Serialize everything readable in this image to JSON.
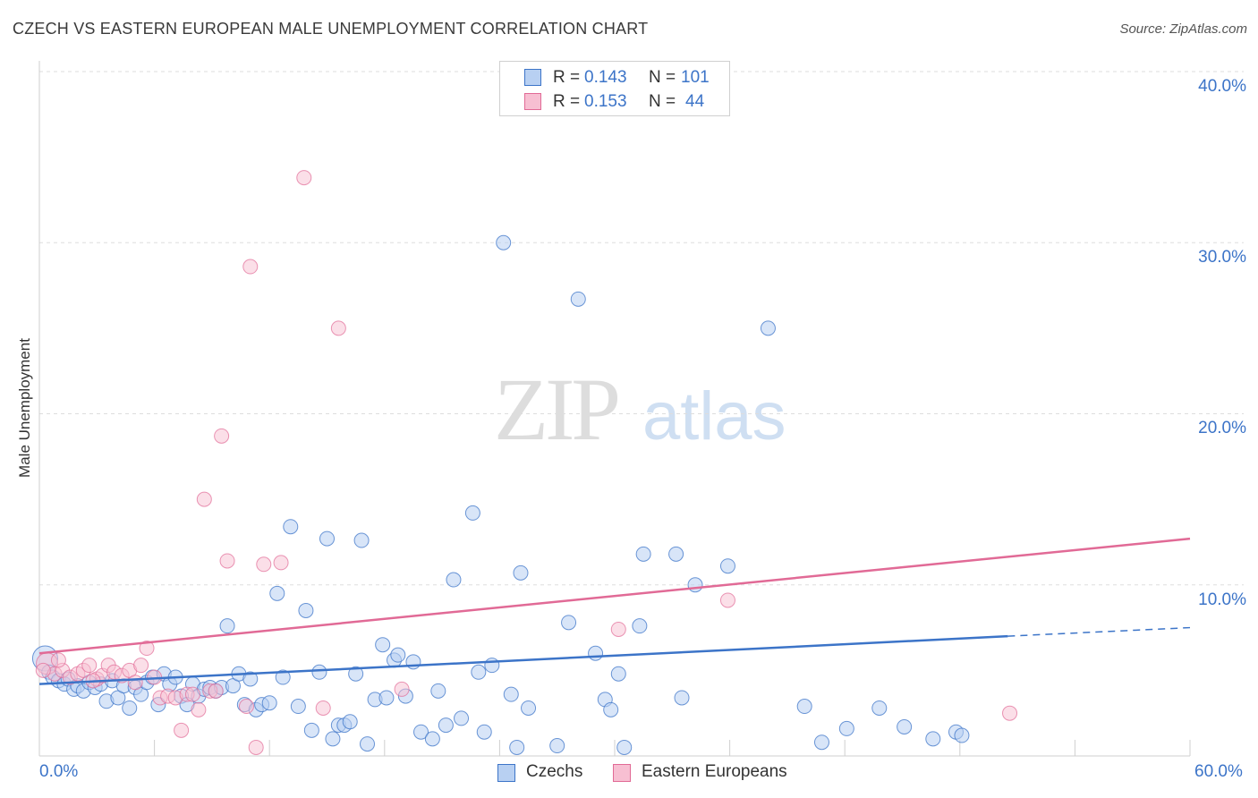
{
  "header": {
    "title": "CZECH VS EASTERN EUROPEAN MALE UNEMPLOYMENT CORRELATION CHART",
    "source": "Source: ZipAtlas.com"
  },
  "watermark": {
    "part1": "ZIP",
    "part2": "atlas"
  },
  "colors": {
    "blue": "#3c74c8",
    "blue_fill": "#b8d0f2",
    "pink": "#e16a96",
    "pink_fill": "#f7bfd2",
    "grid": "#dddddd"
  },
  "legend_top": {
    "rows": [
      {
        "r_label": "R =",
        "r_value": "0.143",
        "n_label": "N =",
        "n_value": "101"
      },
      {
        "r_label": "R =",
        "r_value": "0.153",
        "n_label": "N =",
        "n_value": "44"
      }
    ]
  },
  "legend_bottom": {
    "series1": "Czechs",
    "series2": "Eastern Europeans"
  },
  "axes": {
    "ylabel": "Male Unemployment",
    "y_ticks": [
      "10.0%",
      "20.0%",
      "30.0%",
      "40.0%"
    ],
    "x_min_label": "0.0%",
    "x_max_label": "60.0%"
  },
  "chart_data": {
    "type": "scatter",
    "title": "CZECH VS EASTERN EUROPEAN MALE UNEMPLOYMENT CORRELATION CHART",
    "xlabel": "",
    "ylabel": "Male Unemployment",
    "xlim": [
      0,
      60
    ],
    "ylim": [
      0,
      40
    ],
    "series": [
      {
        "name": "Czechs",
        "r": 0.143,
        "n": 101,
        "trend": {
          "x0": 0,
          "y0": 4.2,
          "x1": 50.5,
          "y1": 7.0,
          "dash_to_x": 60,
          "dash_to_y": 7.5
        },
        "points": [
          [
            0.3,
            5.7
          ],
          [
            0.5,
            4.9
          ],
          [
            0.7,
            4.6
          ],
          [
            1.0,
            4.4
          ],
          [
            1.3,
            4.2
          ],
          [
            1.5,
            4.5
          ],
          [
            1.8,
            3.9
          ],
          [
            2.0,
            4.1
          ],
          [
            2.3,
            3.8
          ],
          [
            2.6,
            4.3
          ],
          [
            2.9,
            4.0
          ],
          [
            3.2,
            4.2
          ],
          [
            3.5,
            3.2
          ],
          [
            3.8,
            4.4
          ],
          [
            4.1,
            3.4
          ],
          [
            4.4,
            4.1
          ],
          [
            4.7,
            2.8
          ],
          [
            5.0,
            4.0
          ],
          [
            5.3,
            3.6
          ],
          [
            5.6,
            4.3
          ],
          [
            5.9,
            4.6
          ],
          [
            6.2,
            3.0
          ],
          [
            6.5,
            4.8
          ],
          [
            6.8,
            4.2
          ],
          [
            7.1,
            4.6
          ],
          [
            7.4,
            3.5
          ],
          [
            7.7,
            3.0
          ],
          [
            8.0,
            4.2
          ],
          [
            8.3,
            3.5
          ],
          [
            8.6,
            3.9
          ],
          [
            8.9,
            4.0
          ],
          [
            9.2,
            3.8
          ],
          [
            9.5,
            4.0
          ],
          [
            9.8,
            7.6
          ],
          [
            10.1,
            4.1
          ],
          [
            10.4,
            4.8
          ],
          [
            10.7,
            3.0
          ],
          [
            11.0,
            4.5
          ],
          [
            11.3,
            2.7
          ],
          [
            11.6,
            3.0
          ],
          [
            12.0,
            3.1
          ],
          [
            12.4,
            9.5
          ],
          [
            12.7,
            4.6
          ],
          [
            13.1,
            13.4
          ],
          [
            13.5,
            2.9
          ],
          [
            13.9,
            8.5
          ],
          [
            14.2,
            1.5
          ],
          [
            14.6,
            4.9
          ],
          [
            15.0,
            12.7
          ],
          [
            15.3,
            1.0
          ],
          [
            15.6,
            1.8
          ],
          [
            15.9,
            1.8
          ],
          [
            16.2,
            2.0
          ],
          [
            16.5,
            4.8
          ],
          [
            16.8,
            12.6
          ],
          [
            17.1,
            0.7
          ],
          [
            17.5,
            3.3
          ],
          [
            17.9,
            6.5
          ],
          [
            18.1,
            3.4
          ],
          [
            18.5,
            5.6
          ],
          [
            18.7,
            5.9
          ],
          [
            19.1,
            3.5
          ],
          [
            19.5,
            5.5
          ],
          [
            19.9,
            1.4
          ],
          [
            20.5,
            1.0
          ],
          [
            20.8,
            3.8
          ],
          [
            21.2,
            1.8
          ],
          [
            21.6,
            10.3
          ],
          [
            22.0,
            2.2
          ],
          [
            22.6,
            14.2
          ],
          [
            22.9,
            4.9
          ],
          [
            23.2,
            1.4
          ],
          [
            23.6,
            5.3
          ],
          [
            24.2,
            30.0
          ],
          [
            24.6,
            3.6
          ],
          [
            24.9,
            0.5
          ],
          [
            25.1,
            10.7
          ],
          [
            25.5,
            2.8
          ],
          [
            27.0,
            0.6
          ],
          [
            27.6,
            7.8
          ],
          [
            28.1,
            26.7
          ],
          [
            29.0,
            6.0
          ],
          [
            29.5,
            3.3
          ],
          [
            29.8,
            2.7
          ],
          [
            30.2,
            4.8
          ],
          [
            30.5,
            0.5
          ],
          [
            31.3,
            7.6
          ],
          [
            31.5,
            11.8
          ],
          [
            33.2,
            11.8
          ],
          [
            33.5,
            3.4
          ],
          [
            34.2,
            10.0
          ],
          [
            35.9,
            11.1
          ],
          [
            38.0,
            25.0
          ],
          [
            39.9,
            2.9
          ],
          [
            40.8,
            0.8
          ],
          [
            42.1,
            1.6
          ],
          [
            43.8,
            2.8
          ],
          [
            45.1,
            1.7
          ],
          [
            46.6,
            1.0
          ],
          [
            47.8,
            1.4
          ],
          [
            48.1,
            1.2
          ]
        ]
      },
      {
        "name": "Eastern Europeans",
        "r": 0.153,
        "n": 44,
        "trend": {
          "x0": 0,
          "y0": 6.0,
          "x1": 60,
          "y1": 12.7
        },
        "points": [
          [
            0.4,
            5.4
          ],
          [
            0.8,
            4.8
          ],
          [
            1.2,
            5.0
          ],
          [
            1.6,
            4.6
          ],
          [
            2.0,
            4.8
          ],
          [
            2.3,
            5.0
          ],
          [
            2.6,
            5.3
          ],
          [
            3.0,
            4.5
          ],
          [
            3.3,
            4.7
          ],
          [
            3.6,
            5.3
          ],
          [
            3.9,
            4.9
          ],
          [
            4.3,
            4.7
          ],
          [
            4.7,
            5.0
          ],
          [
            5.0,
            4.3
          ],
          [
            5.3,
            5.3
          ],
          [
            5.6,
            6.3
          ],
          [
            6.0,
            4.6
          ],
          [
            6.3,
            3.4
          ],
          [
            6.7,
            3.5
          ],
          [
            7.1,
            3.4
          ],
          [
            7.4,
            1.5
          ],
          [
            7.7,
            3.6
          ],
          [
            8.0,
            3.6
          ],
          [
            8.3,
            2.7
          ],
          [
            8.6,
            15.0
          ],
          [
            8.9,
            3.8
          ],
          [
            9.2,
            3.8
          ],
          [
            9.5,
            18.7
          ],
          [
            9.8,
            11.4
          ],
          [
            10.8,
            2.9
          ],
          [
            11.0,
            28.6
          ],
          [
            11.3,
            0.5
          ],
          [
            11.7,
            11.2
          ],
          [
            12.6,
            11.3
          ],
          [
            13.8,
            33.8
          ],
          [
            14.8,
            2.8
          ],
          [
            15.6,
            25.0
          ],
          [
            18.9,
            3.9
          ],
          [
            30.2,
            7.4
          ],
          [
            35.9,
            9.1
          ],
          [
            50.6,
            2.5
          ],
          [
            0.2,
            5.0
          ],
          [
            1.0,
            5.6
          ],
          [
            2.8,
            4.4
          ]
        ]
      }
    ]
  }
}
